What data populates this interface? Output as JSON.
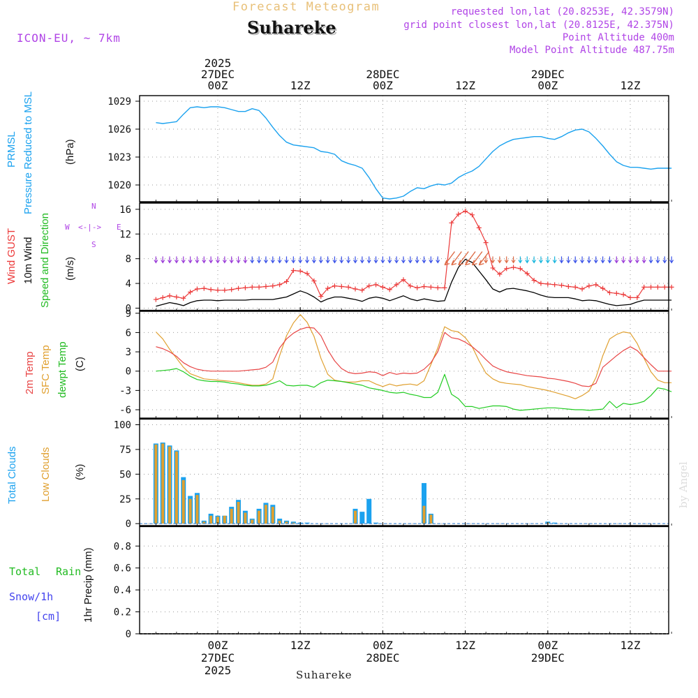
{
  "header": {
    "product_title": "Forecast Meteogram",
    "station": "Suhareke",
    "model": "ICON-EU, ~ 7km",
    "requested": "requested lon,lat (20.8253E, 42.3579N)",
    "grid_point": "grid point closest lon,lat (20.8125E, 42.375N)",
    "point_alt": "Point Altitude 400m",
    "model_alt": "Model Point Altitude 487.75m",
    "watermark": "by Angel",
    "footer_station": "Suhareke"
  },
  "time_axis": {
    "top_labels": [
      {
        "h": 0,
        "lines": [
          "2025",
          "27DEC",
          "00Z"
        ]
      },
      {
        "h": 12,
        "lines": [
          "12Z"
        ]
      },
      {
        "h": 24,
        "lines": [
          "28DEC",
          "00Z"
        ]
      },
      {
        "h": 36,
        "lines": [
          "12Z"
        ]
      },
      {
        "h": 48,
        "lines": [
          "29DEC",
          "00Z"
        ]
      },
      {
        "h": 60,
        "lines": [
          "12Z"
        ]
      }
    ],
    "bottom_labels": [
      {
        "h": 0,
        "lines": [
          "00Z",
          "27DEC",
          "2025"
        ]
      },
      {
        "h": 12,
        "lines": [
          "12Z"
        ]
      },
      {
        "h": 24,
        "lines": [
          "00Z",
          "28DEC"
        ]
      },
      {
        "h": 36,
        "lines": [
          "12Z"
        ]
      },
      {
        "h": 48,
        "lines": [
          "00Z",
          "29DEC"
        ]
      },
      {
        "h": 60,
        "lines": [
          "12Z"
        ]
      }
    ]
  },
  "panels": {
    "pressure": {
      "label_line1": "PRMSL",
      "label_line2": "Pressure Reduced to MSL",
      "unit": "(hPa)",
      "ticks": [
        "1020",
        "1023",
        "1026",
        "1029"
      ]
    },
    "wind": {
      "label_line1": "Wind GUST",
      "label_line2": "10m Wind",
      "label_line3": "Speed and Direction",
      "unit": "(m/s)",
      "compass_n": "N",
      "compass_s": "S",
      "compass_w": "W",
      "compass_e": "E",
      "compass_mid": "<-|->",
      "ticks": [
        "0",
        "4",
        "8",
        "12",
        "16"
      ]
    },
    "temp": {
      "label_line1": "2m Temp",
      "label_line2": "SFC Temp",
      "label_line3": "dewpt Temp",
      "unit": "(C)",
      "ticks": [
        "-6",
        "-3",
        "0",
        "3",
        "6",
        "9"
      ]
    },
    "clouds": {
      "label_line1": "Total Clouds",
      "label_line2": "Low Clouds",
      "unit": "(%)",
      "ticks": [
        "0",
        "25",
        "50",
        "75",
        "100"
      ]
    },
    "precip": {
      "label_total": "Total",
      "label_rain": "Rain",
      "label_snow": "Snow/1h",
      "label_cm": "[cm]",
      "unit": "1hr Precip (mm)",
      "ticks": [
        "0",
        "0.2",
        "0.4",
        "0.6",
        "0.8"
      ]
    }
  },
  "colors": {
    "pressure": "#1ba2ef",
    "gust": "#ec3a3a",
    "wind": "#000000",
    "t2m": "#e84545",
    "tsfc": "#e0a030",
    "dew": "#22cc22",
    "total_clouds": "#1ba2ef",
    "low_clouds": "#e0a030",
    "rain": "#22bb22",
    "snow": "#4444ee",
    "label_purple": "#b044e6",
    "label_title": "#e8c078",
    "grid": "#999999"
  },
  "chart_data": [
    {
      "type": "line",
      "title": "PRMSL Pressure Reduced to MSL",
      "ylabel": "(hPa)",
      "ylim": [
        1018.2,
        1029.6
      ],
      "x_hours": [
        -9,
        -8,
        -7,
        -6,
        -5,
        -4,
        -3,
        -2,
        -1,
        0,
        1,
        2,
        3,
        4,
        5,
        6,
        7,
        8,
        9,
        10,
        11,
        12,
        13,
        14,
        15,
        16,
        17,
        18,
        19,
        20,
        21,
        22,
        23,
        24,
        25,
        26,
        27,
        28,
        29,
        30,
        31,
        32,
        33,
        34,
        35,
        36,
        37,
        38,
        39,
        40,
        41,
        42,
        43,
        44,
        45,
        46,
        47,
        48,
        49,
        50,
        51,
        52,
        53,
        54,
        55,
        56,
        57,
        58,
        59,
        60,
        61,
        62,
        63,
        64,
        65,
        66
      ],
      "values": [
        1026.7,
        1026.6,
        1026.7,
        1026.8,
        1027.6,
        1028.3,
        1028.4,
        1028.3,
        1028.4,
        1028.4,
        1028.3,
        1028.1,
        1027.9,
        1027.9,
        1028.2,
        1028.0,
        1027.2,
        1026.2,
        1025.3,
        1024.6,
        1024.3,
        1024.2,
        1024.1,
        1024.0,
        1023.6,
        1023.5,
        1023.3,
        1022.6,
        1022.3,
        1022.1,
        1021.8,
        1020.8,
        1019.6,
        1018.6,
        1018.5,
        1018.6,
        1018.8,
        1019.3,
        1019.7,
        1019.6,
        1019.9,
        1020.1,
        1020.0,
        1020.2,
        1020.8,
        1021.2,
        1021.5,
        1022.0,
        1022.8,
        1023.6,
        1024.2,
        1024.6,
        1024.9,
        1025.0,
        1025.1,
        1025.2,
        1025.2,
        1025.0,
        1024.9,
        1025.2,
        1025.6,
        1025.9,
        1026.0,
        1025.7,
        1025.0,
        1024.2,
        1023.3,
        1022.5,
        1022.1,
        1021.9,
        1021.9,
        1021.8,
        1021.7,
        1021.8,
        1021.8,
        1021.8
      ]
    },
    {
      "type": "line",
      "title": "Wind GUST / 10m Wind Speed and Direction",
      "ylabel": "(m/s)",
      "ylim": [
        -0.4,
        17.0
      ],
      "x_hours": [
        -9,
        -8,
        -7,
        -6,
        -5,
        -4,
        -3,
        -2,
        -1,
        0,
        1,
        2,
        3,
        4,
        5,
        6,
        7,
        8,
        9,
        10,
        11,
        12,
        13,
        14,
        15,
        16,
        17,
        18,
        19,
        20,
        21,
        22,
        23,
        24,
        25,
        26,
        27,
        28,
        29,
        30,
        31,
        32,
        33,
        34,
        35,
        36,
        37,
        38,
        39,
        40,
        41,
        42,
        43,
        44,
        45,
        46,
        47,
        48,
        49,
        50,
        51,
        52,
        53,
        54,
        55,
        56,
        57,
        58,
        59,
        60,
        61,
        62,
        63,
        64,
        65,
        66
      ],
      "series": [
        {
          "name": "Wind GUST",
          "values": [
            1.4,
            1.7,
            2.0,
            1.8,
            1.6,
            2.6,
            3.1,
            3.2,
            3.0,
            2.9,
            2.9,
            3.0,
            3.2,
            3.3,
            3.4,
            3.4,
            3.5,
            3.6,
            3.8,
            4.3,
            6.1,
            6.0,
            5.6,
            4.4,
            1.9,
            3.2,
            3.6,
            3.5,
            3.4,
            3.1,
            2.9,
            3.6,
            3.8,
            3.4,
            3.0,
            3.8,
            4.6,
            3.6,
            3.3,
            3.5,
            3.4,
            3.3,
            3.3,
            13.8,
            15.2,
            15.7,
            15.1,
            13.0,
            10.6,
            6.5,
            5.5,
            6.4,
            6.6,
            6.4,
            5.6,
            4.5,
            4.0,
            3.9,
            3.8,
            3.7,
            3.5,
            3.4,
            3.1,
            3.6,
            3.8,
            3.2,
            2.5,
            2.4,
            2.2,
            1.7,
            1.7,
            3.4,
            3.4,
            3.4,
            3.4,
            3.4
          ]
        },
        {
          "name": "10m Wind",
          "values": [
            0.3,
            0.6,
            0.9,
            0.7,
            0.4,
            0.9,
            1.2,
            1.3,
            1.3,
            1.2,
            1.3,
            1.3,
            1.3,
            1.3,
            1.4,
            1.4,
            1.4,
            1.4,
            1.6,
            1.8,
            2.3,
            2.8,
            2.4,
            1.8,
            1.0,
            1.5,
            1.8,
            1.8,
            1.6,
            1.4,
            1.1,
            1.6,
            1.8,
            1.6,
            1.2,
            1.6,
            2.0,
            1.5,
            1.2,
            1.5,
            1.3,
            1.1,
            1.2,
            4.2,
            6.6,
            7.9,
            7.4,
            6.0,
            4.6,
            3.1,
            2.6,
            3.1,
            3.2,
            3.0,
            2.8,
            2.5,
            2.1,
            1.8,
            1.7,
            1.7,
            1.7,
            1.5,
            1.2,
            1.3,
            1.2,
            0.9,
            0.6,
            0.4,
            0.5,
            0.6,
            1.0,
            1.3,
            1.3,
            1.3,
            1.3,
            1.3
          ]
        }
      ]
    },
    {
      "type": "line",
      "title": "2m Temp / SFC Temp / dewpt Temp",
      "ylabel": "(C)",
      "ylim": [
        -7.3,
        9.3
      ],
      "x_hours": [
        -9,
        -8,
        -7,
        -6,
        -5,
        -4,
        -3,
        -2,
        -1,
        0,
        1,
        2,
        3,
        4,
        5,
        6,
        7,
        8,
        9,
        10,
        11,
        12,
        13,
        14,
        15,
        16,
        17,
        18,
        19,
        20,
        21,
        22,
        23,
        24,
        25,
        26,
        27,
        28,
        29,
        30,
        31,
        32,
        33,
        34,
        35,
        36,
        37,
        38,
        39,
        40,
        41,
        42,
        43,
        44,
        45,
        46,
        47,
        48,
        49,
        50,
        51,
        52,
        53,
        54,
        55,
        56,
        57,
        58,
        59,
        60,
        61,
        62,
        63,
        64,
        65,
        66
      ],
      "series": [
        {
          "name": "2m Temp",
          "values": [
            3.8,
            3.5,
            3.0,
            2.3,
            1.3,
            0.7,
            0.3,
            0.1,
            0.0,
            0.0,
            0.0,
            0.0,
            0.0,
            0.1,
            0.2,
            0.3,
            0.6,
            1.4,
            3.6,
            5.0,
            5.9,
            6.5,
            6.8,
            6.7,
            5.5,
            3.3,
            1.6,
            0.4,
            -0.2,
            -0.4,
            -0.3,
            -0.1,
            -0.2,
            -0.7,
            -0.2,
            -0.5,
            -0.3,
            -0.4,
            -0.3,
            0.3,
            1.3,
            3.0,
            6.0,
            5.2,
            5.0,
            4.5,
            3.8,
            2.9,
            1.8,
            0.8,
            0.3,
            -0.1,
            -0.3,
            -0.5,
            -0.7,
            -0.8,
            -0.9,
            -1.1,
            -1.2,
            -1.4,
            -1.6,
            -1.9,
            -2.3,
            -2.4,
            -1.9,
            0.6,
            1.5,
            2.4,
            3.2,
            3.8,
            3.2,
            2.1,
            1.0,
            0.0,
            0.0,
            0.0
          ]
        },
        {
          "name": "SFC Temp",
          "values": [
            6.1,
            5.0,
            3.4,
            2.0,
            0.6,
            -0.4,
            -0.8,
            -1.2,
            -1.3,
            -1.4,
            -1.5,
            -1.6,
            -1.8,
            -2.0,
            -2.2,
            -2.2,
            -2.0,
            -1.2,
            2.4,
            5.5,
            7.5,
            8.8,
            7.6,
            5.4,
            2.0,
            -0.5,
            -1.4,
            -1.6,
            -1.7,
            -1.7,
            -1.5,
            -1.5,
            -2.0,
            -2.4,
            -2.0,
            -2.3,
            -2.1,
            -2.0,
            -2.2,
            -1.5,
            1.0,
            3.6,
            6.9,
            6.3,
            6.1,
            5.2,
            3.8,
            1.6,
            -0.3,
            -1.2,
            -1.7,
            -1.9,
            -2.0,
            -2.1,
            -2.4,
            -2.6,
            -2.8,
            -3.0,
            -3.3,
            -3.6,
            -3.9,
            -4.3,
            -3.8,
            -3.1,
            -1.0,
            2.4,
            5.0,
            5.7,
            6.1,
            5.9,
            4.3,
            2.0,
            -0.1,
            -1.4,
            -1.8,
            -1.8
          ]
        },
        {
          "name": "dewpt Temp",
          "values": [
            0.0,
            0.1,
            0.2,
            0.4,
            -0.1,
            -0.8,
            -1.3,
            -1.5,
            -1.6,
            -1.6,
            -1.7,
            -1.9,
            -2.0,
            -2.2,
            -2.3,
            -2.3,
            -2.2,
            -1.9,
            -1.5,
            -2.2,
            -2.3,
            -2.2,
            -2.2,
            -2.5,
            -1.8,
            -1.4,
            -1.5,
            -1.6,
            -1.8,
            -2.0,
            -2.2,
            -2.6,
            -2.8,
            -3.0,
            -3.3,
            -3.4,
            -3.3,
            -3.6,
            -3.8,
            -4.1,
            -4.1,
            -3.3,
            -0.5,
            -3.6,
            -4.3,
            -5.5,
            -5.5,
            -5.8,
            -5.6,
            -5.4,
            -5.4,
            -5.5,
            -5.9,
            -6.1,
            -6.0,
            -5.9,
            -5.8,
            -5.7,
            -5.7,
            -5.8,
            -5.9,
            -6.0,
            -6.0,
            -6.1,
            -6.0,
            -5.9,
            -4.7,
            -5.7,
            -5.0,
            -5.2,
            -5.0,
            -4.7,
            -3.8,
            -2.6,
            -2.8,
            -3.2
          ]
        }
      ]
    },
    {
      "type": "bar",
      "title": "Total Clouds / Low Clouds",
      "ylabel": "(%)",
      "ylim": [
        -2,
        106
      ],
      "x_hours": [
        -9,
        -8,
        -7,
        -6,
        -5,
        -4,
        -3,
        -2,
        -1,
        0,
        1,
        2,
        3,
        4,
        5,
        6,
        7,
        8,
        9,
        10,
        11,
        12,
        13,
        14,
        15,
        16,
        17,
        18,
        19,
        20,
        21,
        22,
        23,
        24,
        25,
        26,
        27,
        28,
        29,
        30,
        31,
        32,
        33,
        34,
        35,
        36,
        37,
        38,
        39,
        40,
        41,
        42,
        43,
        44,
        45,
        46,
        47,
        48,
        49,
        50,
        51,
        52,
        53,
        54,
        55,
        56,
        57,
        58,
        59,
        60,
        61,
        62,
        63,
        64,
        65,
        66
      ],
      "series": [
        {
          "name": "Total Clouds",
          "values": [
            81,
            82,
            79,
            74,
            47,
            28,
            31,
            3,
            10,
            8,
            8,
            17,
            24,
            13,
            5,
            15,
            21,
            19,
            5,
            3,
            2,
            1,
            1,
            0,
            0,
            0,
            0,
            0,
            0,
            15,
            12,
            25,
            1,
            0,
            0,
            0,
            0,
            0,
            0,
            41,
            10,
            0,
            0,
            0,
            0,
            0,
            0,
            0,
            0,
            0,
            0,
            0,
            0,
            0,
            0,
            0,
            0,
            2,
            1,
            0,
            0,
            0,
            0,
            0,
            0,
            0,
            0,
            0,
            0,
            0,
            0,
            0,
            0,
            0,
            0,
            0
          ]
        },
        {
          "name": "Low Clouds",
          "values": [
            80,
            81,
            78,
            73,
            44,
            25,
            29,
            2,
            8,
            7,
            8,
            15,
            22,
            11,
            4,
            13,
            19,
            17,
            3,
            2,
            1,
            0,
            0,
            0,
            0,
            0,
            0,
            0,
            0,
            13,
            0,
            0,
            0,
            0,
            0,
            0,
            0,
            0,
            0,
            18,
            9,
            0,
            0,
            0,
            0,
            0,
            0,
            0,
            0,
            0,
            0,
            0,
            0,
            0,
            0,
            0,
            0,
            1,
            0,
            0,
            0,
            0,
            0,
            0,
            0,
            0,
            0,
            0,
            0,
            0,
            0,
            0,
            0,
            0,
            0,
            0
          ]
        }
      ]
    },
    {
      "type": "bar",
      "title": "Total Rain / Snow/1h [cm]",
      "ylabel": "1hr Precip (mm)",
      "ylim": [
        0,
        0.98
      ],
      "x_hours": [
        -9,
        66
      ],
      "series": [
        {
          "name": "Total Rain",
          "values": [
            0,
            0
          ]
        },
        {
          "name": "Snow/1h",
          "values": [
            0,
            0
          ]
        }
      ]
    }
  ]
}
